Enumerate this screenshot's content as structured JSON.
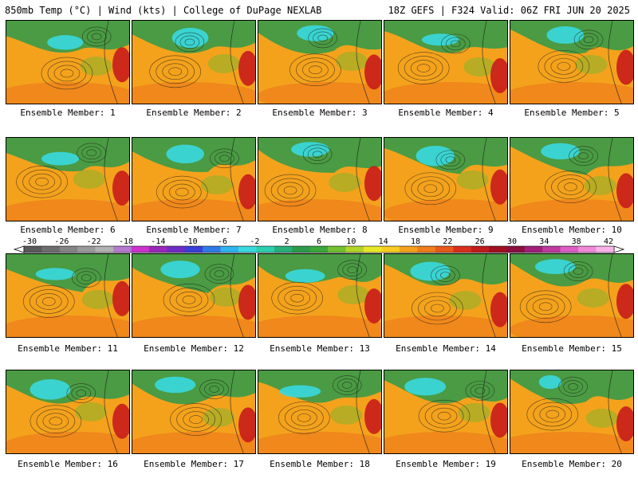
{
  "header": {
    "left": "850mb Temp (°C) | Wind (kts) | College of DuPage NEXLAB",
    "right": "18Z GEFS | F324 Valid: 06Z FRI JUN 20 2025"
  },
  "members": [
    "Ensemble Member: 1",
    "Ensemble Member: 2",
    "Ensemble Member: 3",
    "Ensemble Member: 4",
    "Ensemble Member: 5",
    "Ensemble Member: 6",
    "Ensemble Member: 7",
    "Ensemble Member: 8",
    "Ensemble Member: 9",
    "Ensemble Member: 10",
    "Ensemble Member: 11",
    "Ensemble Member: 12",
    "Ensemble Member: 13",
    "Ensemble Member: 14",
    "Ensemble Member: 15",
    "Ensemble Member: 16",
    "Ensemble Member: 17",
    "Ensemble Member: 18",
    "Ensemble Member: 19",
    "Ensemble Member: 20"
  ],
  "colorbar": {
    "ticks": [
      "-30",
      "-26",
      "-22",
      "-18",
      "-14",
      "-10",
      "-6",
      "-2",
      "2",
      "6",
      "10",
      "14",
      "18",
      "22",
      "26",
      "30",
      "34",
      "38",
      "42"
    ],
    "colors": [
      "#5a5a5a",
      "#6e6e6e",
      "#858585",
      "#9b9b9b",
      "#b2b2b2",
      "#b47bd0",
      "#cc33cc",
      "#9a28b8",
      "#6f2cc4",
      "#3a3fd8",
      "#2f7be8",
      "#2fb4f0",
      "#39d9e0",
      "#2ccfb0",
      "#27b07a",
      "#2c9a4a",
      "#3aa83a",
      "#73c030",
      "#b3d42a",
      "#e8e82a",
      "#f8cc22",
      "#f4a21c",
      "#f07e1a",
      "#e85a1a",
      "#d8301c",
      "#c01c1c",
      "#a01020",
      "#8a1040",
      "#a0207a",
      "#c03aa0",
      "#dd5ec4",
      "#f08ad8",
      "#f8b4e8"
    ]
  },
  "palette": {
    "background": "#f4a21c",
    "warm": "#e85a1a",
    "hot": "#c81c1c",
    "cool": "#2c9a4a",
    "cold": "#39d9e0",
    "land": "#6db82e",
    "contour": "#1a1a1a"
  }
}
